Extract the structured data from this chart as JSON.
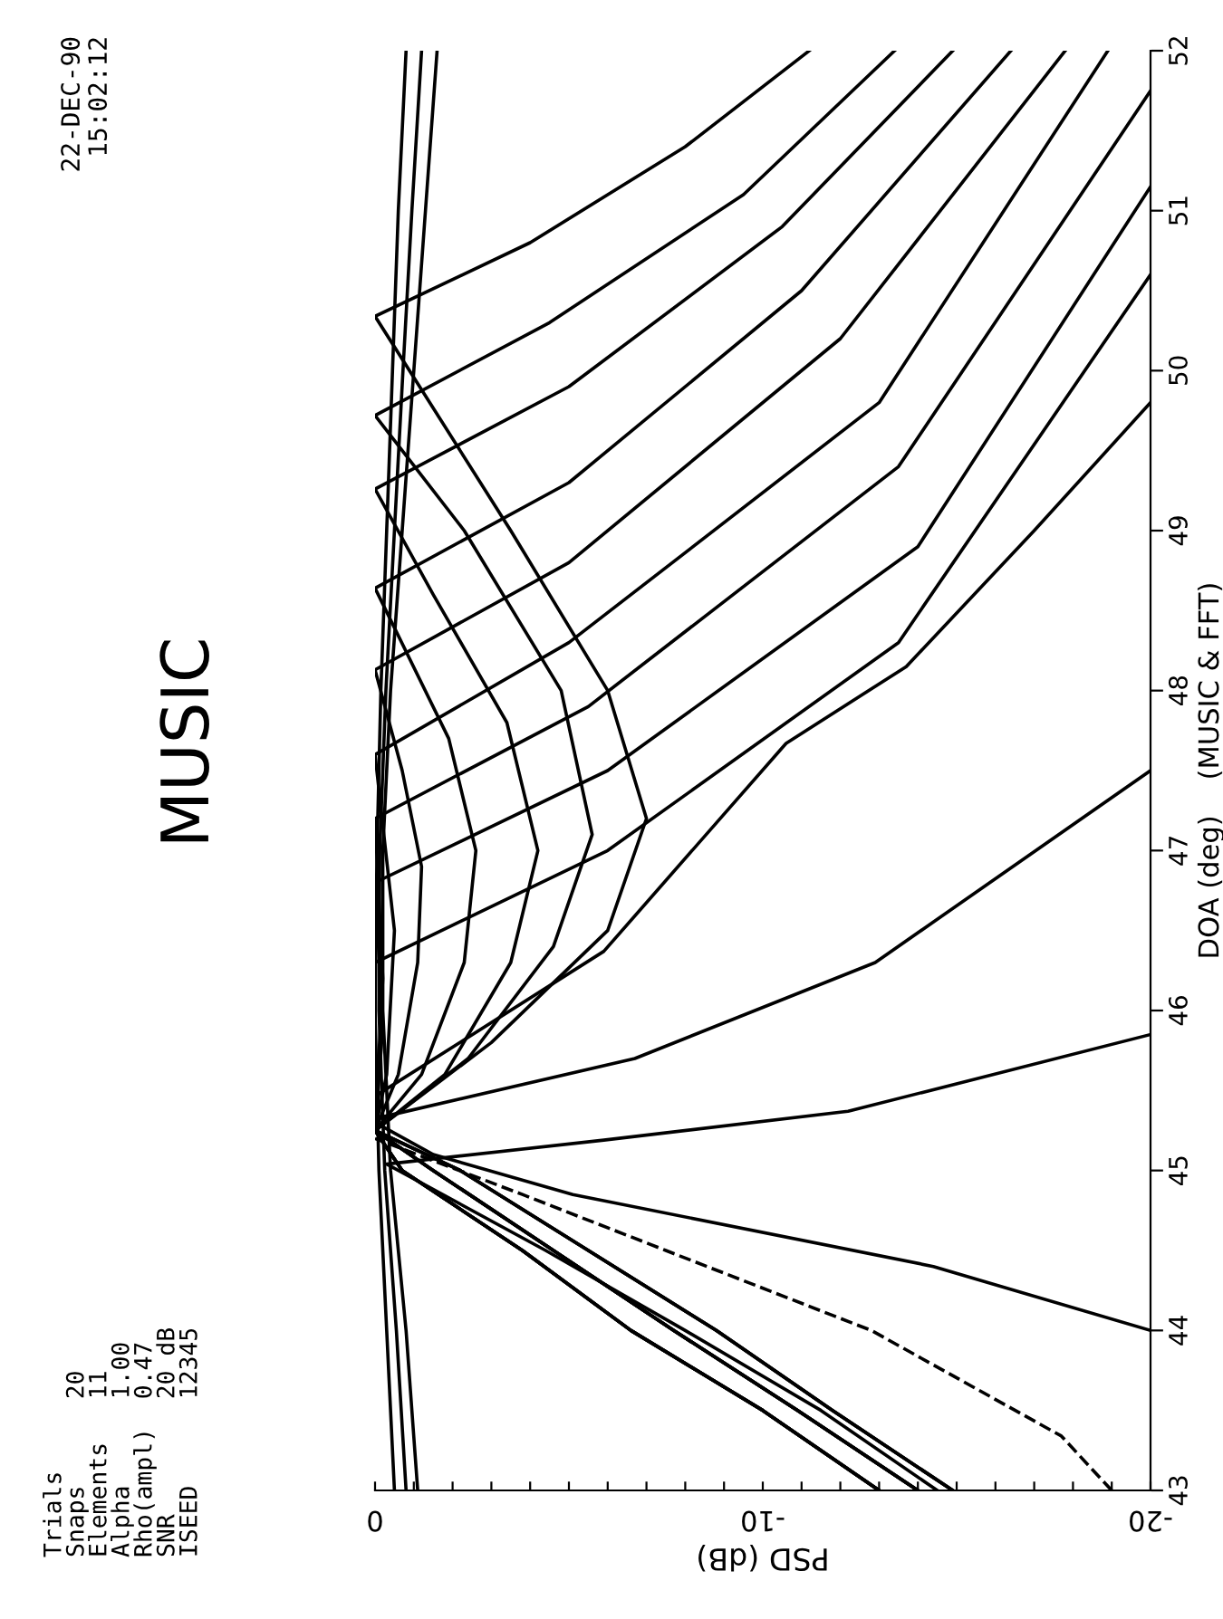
{
  "chart_data": {
    "type": "line",
    "title": "MUSIC",
    "ylabel": "DOA (deg)    (MUSIC & FFT)",
    "xlabel": "PSD (dB)",
    "annotations": [
      "22-DEC-90",
      "15:02:12",
      "Trials",
      "Snaps      20",
      "Elements   11",
      "Alpha      1.00",
      "Rho(ampl)  0.47",
      "SNR        20 dB",
      "ISEED      12345"
    ],
    "ylim": [
      43,
      52
    ],
    "yticks": [
      43,
      44,
      45,
      46,
      47,
      48,
      49,
      50,
      51,
      52
    ],
    "xlim": [
      0,
      -20
    ],
    "xticks": [
      {
        "value": 0,
        "label": "0"
      },
      {
        "value": -1,
        "label": null
      },
      {
        "value": -2,
        "label": null
      },
      {
        "value": -3,
        "label": null
      },
      {
        "value": -4,
        "label": null
      },
      {
        "value": -5,
        "label": null
      },
      {
        "value": -6,
        "label": null
      },
      {
        "value": -7,
        "label": null
      },
      {
        "value": -8,
        "label": null
      },
      {
        "value": -9,
        "label": null
      },
      {
        "value": -10,
        "label": "-10"
      },
      {
        "value": -11,
        "label": null
      },
      {
        "value": -12,
        "label": null
      },
      {
        "value": -13,
        "label": null
      },
      {
        "value": -14,
        "label": null
      },
      {
        "value": -15,
        "label": null
      },
      {
        "value": -16,
        "label": null
      },
      {
        "value": -17,
        "label": null
      },
      {
        "value": -18,
        "label": null
      },
      {
        "value": -19,
        "label": null
      },
      {
        "value": -20,
        "label": "-20"
      }
    ],
    "grid": false,
    "legend": false,
    "marker": "none",
    "line_style": "solid",
    "series": [
      {
        "color": "#000000",
        "values": [
          43,
          44,
          45,
          46,
          47,
          48,
          49,
          50,
          51,
          52
        ],
        "x": [
          -0.5,
          -0.3,
          -0.1,
          0,
          -0.05,
          -0.15,
          -0.3,
          -0.45,
          -0.6,
          -0.8
        ]
      },
      {
        "color": "#000000",
        "values": [
          43,
          44,
          45,
          46,
          47,
          48,
          49,
          50,
          51,
          52
        ],
        "x": [
          -0.8,
          -0.55,
          -0.25,
          -0.1,
          -0.12,
          -0.28,
          -0.5,
          -0.72,
          -0.95,
          -1.2
        ]
      },
      {
        "color": "#000000",
        "values": [
          43,
          44,
          45,
          46,
          47,
          48,
          49,
          50,
          51,
          52
        ],
        "x": [
          -1.1,
          -0.8,
          -0.4,
          -0.2,
          -0.2,
          -0.4,
          -0.7,
          -1.0,
          -1.3,
          -1.6
        ]
      },
      {
        "color": "#000000",
        "values": [
          43,
          43.5,
          44,
          44.5,
          45,
          45.25,
          45.8,
          46.5,
          47.2,
          48.0,
          49.0,
          50.34,
          50.8,
          51.4,
          52
        ],
        "x": [
          -13.0,
          -10.0,
          -6.6,
          -3.8,
          -0.7,
          0,
          -3.0,
          -6.0,
          -7.0,
          -6.0,
          -3.5,
          0,
          -4.0,
          -8.0,
          -11.2
        ]
      },
      {
        "color": "#000000",
        "values": [
          43,
          43.5,
          44,
          44.5,
          45,
          45.25,
          45.7,
          46.4,
          47.1,
          48.0,
          49.0,
          49.72,
          50.3,
          51.1,
          52
        ],
        "x": [
          -14.9,
          -11.8,
          -8.8,
          -5.5,
          -2.2,
          0,
          -2.4,
          -4.6,
          -5.6,
          -4.8,
          -2.3,
          0,
          -4.5,
          -9.5,
          -13.4
        ]
      },
      {
        "color": "#000000",
        "values": [
          43,
          43.5,
          44,
          44.5,
          45,
          45.25,
          45.6,
          46.3,
          47.0,
          47.8,
          48.6,
          49.26,
          49.9,
          50.9,
          52
        ],
        "x": [
          -14.0,
          -10.9,
          -7.7,
          -4.6,
          -1.5,
          0,
          -1.8,
          -3.5,
          -4.2,
          -3.4,
          -1.5,
          0,
          -5.0,
          -10.5,
          -14.9
        ]
      },
      {
        "color": "#000000",
        "values": [
          43,
          43.5,
          44,
          44.5,
          45,
          45.25,
          45.6,
          46.3,
          47.0,
          47.7,
          48.64,
          49.3,
          50.5,
          52
        ],
        "x": [
          -13.0,
          -10.0,
          -6.6,
          -3.8,
          -0.7,
          0,
          -1.2,
          -2.3,
          -2.6,
          -1.9,
          0,
          -5.0,
          -11.0,
          -16.4
        ]
      },
      {
        "color": "#000000",
        "values": [
          43,
          43.5,
          44,
          44.5,
          45,
          45.25,
          45.6,
          46.3,
          46.9,
          47.5,
          48.13,
          48.8,
          50.2,
          52
        ],
        "x": [
          -14.9,
          -11.8,
          -8.8,
          -5.5,
          -2.2,
          0,
          -0.6,
          -1.1,
          -1.2,
          -0.7,
          0,
          -5.0,
          -12.0,
          -17.8
        ]
      },
      {
        "color": "#000000",
        "values": [
          43,
          43.5,
          44,
          44.5,
          45,
          45.25,
          45.6,
          46.5,
          47.6,
          48.3,
          49.8,
          52
        ],
        "x": [
          -14.0,
          -10.9,
          -7.7,
          -4.6,
          -1.5,
          0,
          -0.3,
          -0.5,
          0,
          -5.0,
          -13.0,
          -18.9
        ]
      },
      {
        "color": "#000000",
        "values": [
          43,
          43.5,
          44,
          44.5,
          45,
          45.25,
          46.2,
          47.2,
          47.9,
          49.4,
          51.75
        ],
        "x": [
          -13.0,
          -10.0,
          -6.6,
          -3.8,
          -0.7,
          0,
          -0.2,
          0,
          -5.5,
          -13.5,
          -20
        ]
      },
      {
        "color": "#000000",
        "values": [
          43,
          43.5,
          44,
          44.5,
          45,
          45.25,
          45.9,
          46.8,
          47.5,
          48.9,
          51.15
        ],
        "x": [
          -14.0,
          -10.9,
          -7.7,
          -4.6,
          -1.5,
          0,
          -0.2,
          0,
          -6.0,
          -14.0,
          -20
        ]
      },
      {
        "color": "#000000",
        "values": [
          43,
          43.5,
          44,
          44.5,
          45,
          45.25,
          46.3,
          47.0,
          48.3,
          50.6
        ],
        "x": [
          -14.9,
          -11.8,
          -8.8,
          -5.5,
          -2.2,
          0,
          0,
          -6.0,
          -13.5,
          -20
        ]
      },
      {
        "color": "#000000",
        "values": [
          43,
          43.5,
          44,
          44.5,
          45,
          45.25,
          45.48,
          46.37,
          47.67,
          48.15,
          49.0,
          49.8
        ],
        "x": [
          -14.0,
          -10.9,
          -7.7,
          -4.6,
          -1.5,
          0,
          -0.1,
          -5.9,
          -10.6,
          -13.7,
          -17.0,
          -20
        ]
      },
      {
        "color": "#000000",
        "values": [
          43,
          43.5,
          44,
          44.5,
          45,
          45.25,
          45.33,
          45.7,
          46.3,
          47.5
        ],
        "x": [
          -13.0,
          -10.0,
          -6.6,
          -3.8,
          -0.7,
          0,
          -0.1,
          -6.7,
          -12.9,
          -20
        ]
      },
      {
        "color": "#000000",
        "values": [
          43,
          43.5,
          44,
          44.5,
          45.04,
          45.19,
          45.37,
          45.85
        ],
        "x": [
          -14.5,
          -11.5,
          -8.0,
          -4.4,
          -0.3,
          -5.9,
          -12.2,
          -20
        ]
      },
      {
        "color": "#000000",
        "values": [
          44.0,
          44.4,
          44.85,
          45.1,
          45.3
        ],
        "x": [
          -20,
          -14.4,
          -5.1,
          -1.5,
          0
        ]
      },
      {
        "color": "#000000",
        "line_style": "dashed",
        "values": [
          43,
          43.34,
          44,
          44.5,
          44.85,
          45.2
        ],
        "x": [
          -19.0,
          -17.7,
          -12.8,
          -7.5,
          -3.8,
          0
        ]
      }
    ]
  }
}
